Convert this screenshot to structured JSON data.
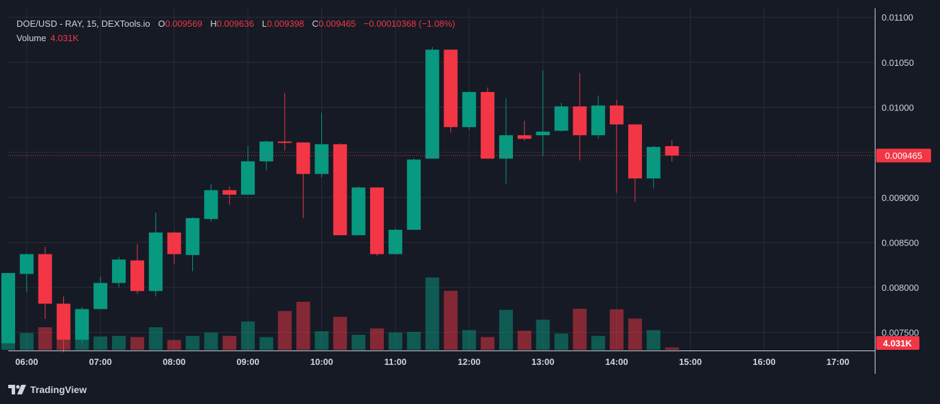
{
  "legend": {
    "symbol": "DOE/USD - RAY, 15, DEXTools.io",
    "o_label": "O",
    "o_value": "0.009569",
    "h_label": "H",
    "h_value": "0.009636",
    "l_label": "L",
    "l_value": "0.009398",
    "c_label": "C",
    "c_value": "0.009465",
    "change": "−0.00010368 (−1.08%)",
    "volume_label": "Volume",
    "volume_value": "4.031K"
  },
  "brand": {
    "name": "TradingView",
    "icon": "tradingview-logo-icon"
  },
  "colors": {
    "background": "#161a25",
    "up": "#089981",
    "down": "#f23645",
    "grid": "#2a2e39",
    "text": "#d1d4dc"
  },
  "chart_data": {
    "type": "candlestick",
    "interval_minutes": 15,
    "grid": true,
    "ylim": [
      0.0073,
      0.0111
    ],
    "y_ticks": [
      "0.01100",
      "0.01050",
      "0.01000",
      "0.009500",
      "0.009000",
      "0.008500",
      "0.008000",
      "0.007500"
    ],
    "y_tick_values": [
      0.011,
      0.0105,
      0.01,
      0.0095,
      0.009,
      0.0085,
      0.008,
      0.0075
    ],
    "x_ticks": [
      "06:00",
      "07:00",
      "08:00",
      "09:00",
      "10:00",
      "11:00",
      "12:00",
      "13:00",
      "14:00",
      "15:00",
      "16:00",
      "17:00"
    ],
    "x_range": [
      "05:45",
      "17:30"
    ],
    "last_price": "0.009465",
    "last_price_value": 0.009465,
    "last_volume_label": "4.031K",
    "volume_axis_zero": "0",
    "volume_ylim": [
      0,
      160000
    ],
    "candles": [
      {
        "t": "05:45",
        "o": 0.00738,
        "h": 0.00816,
        "l": 0.00738,
        "c": 0.00816,
        "v": 36000
      },
      {
        "t": "06:00",
        "o": 0.00815,
        "h": 0.00838,
        "l": 0.00795,
        "c": 0.00837,
        "v": 29000
      },
      {
        "t": "06:15",
        "o": 0.00837,
        "h": 0.00845,
        "l": 0.00765,
        "c": 0.00782,
        "v": 39000
      },
      {
        "t": "06:30",
        "o": 0.00782,
        "h": 0.0079,
        "l": 0.00728,
        "c": 0.00742,
        "v": 33000
      },
      {
        "t": "06:45",
        "o": 0.00742,
        "h": 0.00778,
        "l": 0.00738,
        "c": 0.00776,
        "v": 20000
      },
      {
        "t": "07:00",
        "o": 0.00776,
        "h": 0.00812,
        "l": 0.00776,
        "c": 0.00805,
        "v": 23000
      },
      {
        "t": "07:15",
        "o": 0.00805,
        "h": 0.00834,
        "l": 0.008,
        "c": 0.00831,
        "v": 24000
      },
      {
        "t": "07:30",
        "o": 0.0083,
        "h": 0.00848,
        "l": 0.00793,
        "c": 0.00796,
        "v": 22000
      },
      {
        "t": "07:45",
        "o": 0.00796,
        "h": 0.00883,
        "l": 0.0079,
        "c": 0.00861,
        "v": 39000
      },
      {
        "t": "08:00",
        "o": 0.00861,
        "h": 0.00862,
        "l": 0.00826,
        "c": 0.00837,
        "v": 17000
      },
      {
        "t": "08:15",
        "o": 0.00836,
        "h": 0.00878,
        "l": 0.00818,
        "c": 0.00877,
        "v": 24000
      },
      {
        "t": "08:30",
        "o": 0.00876,
        "h": 0.00915,
        "l": 0.00873,
        "c": 0.00908,
        "v": 30000
      },
      {
        "t": "08:45",
        "o": 0.00908,
        "h": 0.00912,
        "l": 0.00892,
        "c": 0.00903,
        "v": 24000
      },
      {
        "t": "09:00",
        "o": 0.00903,
        "h": 0.00957,
        "l": 0.00903,
        "c": 0.0094,
        "v": 49000
      },
      {
        "t": "09:15",
        "o": 0.0094,
        "h": 0.00963,
        "l": 0.0093,
        "c": 0.00962,
        "v": 22000
      },
      {
        "t": "09:30",
        "o": 0.00962,
        "h": 0.01016,
        "l": 0.00952,
        "c": 0.00961,
        "v": 67000
      },
      {
        "t": "09:45",
        "o": 0.00961,
        "h": 0.00961,
        "l": 0.00877,
        "c": 0.00926,
        "v": 83000
      },
      {
        "t": "10:00",
        "o": 0.00926,
        "h": 0.00994,
        "l": 0.00922,
        "c": 0.00959,
        "v": 32000
      },
      {
        "t": "10:15",
        "o": 0.00959,
        "h": 0.0096,
        "l": 0.00858,
        "c": 0.00858,
        "v": 57000
      },
      {
        "t": "10:30",
        "o": 0.00858,
        "h": 0.00912,
        "l": 0.00858,
        "c": 0.00911,
        "v": 26000
      },
      {
        "t": "10:45",
        "o": 0.00911,
        "h": 0.00911,
        "l": 0.00835,
        "c": 0.00837,
        "v": 37000
      },
      {
        "t": "11:00",
        "o": 0.00837,
        "h": 0.00866,
        "l": 0.00837,
        "c": 0.00864,
        "v": 30000
      },
      {
        "t": "11:15",
        "o": 0.00864,
        "h": 0.00943,
        "l": 0.00864,
        "c": 0.00942,
        "v": 31000
      },
      {
        "t": "11:30",
        "o": 0.00943,
        "h": 0.01067,
        "l": 0.00943,
        "c": 0.01064,
        "v": 125000
      },
      {
        "t": "11:45",
        "o": 0.01064,
        "h": 0.01064,
        "l": 0.00972,
        "c": 0.00978,
        "v": 102000
      },
      {
        "t": "12:00",
        "o": 0.00978,
        "h": 0.01018,
        "l": 0.00975,
        "c": 0.01017,
        "v": 34000
      },
      {
        "t": "12:15",
        "o": 0.01017,
        "h": 0.01022,
        "l": 0.00943,
        "c": 0.00943,
        "v": 22000
      },
      {
        "t": "12:30",
        "o": 0.00943,
        "h": 0.0101,
        "l": 0.00915,
        "c": 0.00969,
        "v": 69000
      },
      {
        "t": "12:45",
        "o": 0.00969,
        "h": 0.00985,
        "l": 0.00963,
        "c": 0.00965,
        "v": 33000
      },
      {
        "t": "13:00",
        "o": 0.00969,
        "h": 0.01041,
        "l": 0.00946,
        "c": 0.00973,
        "v": 52000
      },
      {
        "t": "13:15",
        "o": 0.00974,
        "h": 0.01005,
        "l": 0.00973,
        "c": 0.01001,
        "v": 28000
      },
      {
        "t": "13:30",
        "o": 0.01001,
        "h": 0.01038,
        "l": 0.00941,
        "c": 0.00969,
        "v": 71000
      },
      {
        "t": "13:45",
        "o": 0.00969,
        "h": 0.01013,
        "l": 0.00965,
        "c": 0.01002,
        "v": 24000
      },
      {
        "t": "14:00",
        "o": 0.01002,
        "h": 0.01008,
        "l": 0.00905,
        "c": 0.00981,
        "v": 70000
      },
      {
        "t": "14:15",
        "o": 0.00981,
        "h": 0.00981,
        "l": 0.00895,
        "c": 0.00921,
        "v": 54000
      },
      {
        "t": "14:30",
        "o": 0.00921,
        "h": 0.00957,
        "l": 0.0091,
        "c": 0.00956,
        "v": 34000
      },
      {
        "t": "14:45",
        "o": 0.009569,
        "h": 0.009636,
        "l": 0.009398,
        "c": 0.009465,
        "v": 4031
      }
    ]
  }
}
